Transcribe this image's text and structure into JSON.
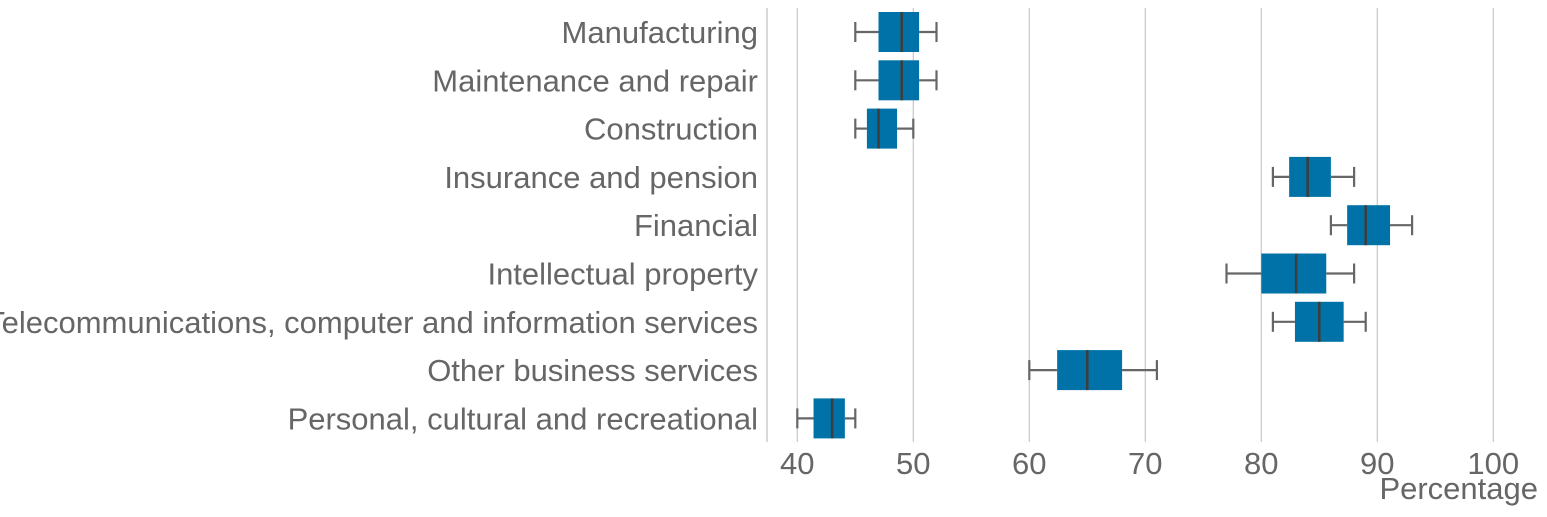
{
  "chart_data": {
    "type": "boxplot",
    "orientation": "horizontal",
    "xlabel": "Percentage",
    "ylabel": "",
    "xlim": [
      37.4,
      104.5
    ],
    "xticks": [
      40,
      50,
      60,
      70,
      80,
      90,
      100
    ],
    "grid": "vertical",
    "box_color": "#0072a7",
    "median_color": "#3d3d3d",
    "whisker_color": "#666666",
    "categories": [
      "Manufacturing",
      "Maintenance and repair",
      "Construction",
      "Insurance and pension",
      "Financial",
      "Intellectual property",
      "Telecommunications, computer and information services",
      "Other business services",
      "Personal, cultural and recreational"
    ],
    "boxes": [
      {
        "min": 45,
        "q1": 47.0,
        "median": 49.0,
        "q3": 50.5,
        "max": 52
      },
      {
        "min": 45,
        "q1": 47.0,
        "median": 49.0,
        "q3": 50.5,
        "max": 52
      },
      {
        "min": 45,
        "q1": 46.0,
        "median": 47.0,
        "q3": 48.6,
        "max": 50
      },
      {
        "min": 81,
        "q1": 82.4,
        "median": 84.0,
        "q3": 86.0,
        "max": 88
      },
      {
        "min": 86,
        "q1": 87.4,
        "median": 89.0,
        "q3": 91.1,
        "max": 93
      },
      {
        "min": 77,
        "q1": 80.0,
        "median": 83.0,
        "q3": 85.6,
        "max": 88
      },
      {
        "min": 81,
        "q1": 82.9,
        "median": 85.0,
        "q3": 87.1,
        "max": 89
      },
      {
        "min": 60,
        "q1": 62.4,
        "median": 65.0,
        "q3": 68.0,
        "max": 71
      },
      {
        "min": 40,
        "q1": 41.4,
        "median": 43.0,
        "q3": 44.1,
        "max": 45
      }
    ]
  }
}
